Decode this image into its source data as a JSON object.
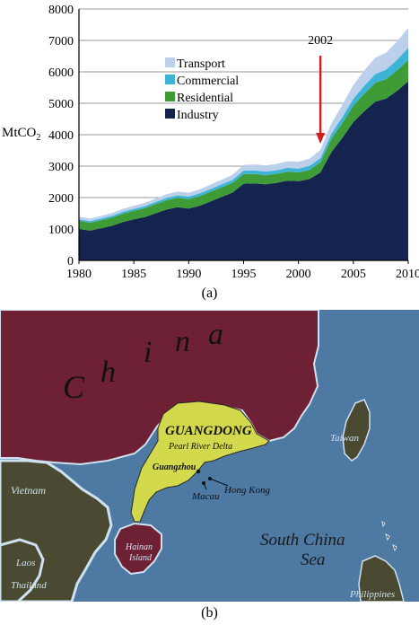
{
  "chart_data": {
    "type": "area",
    "stacked": true,
    "ylabel": "MtCO",
    "ylabel_sub": "2",
    "ylim": [
      0,
      8000
    ],
    "yticks": [
      0,
      1000,
      2000,
      3000,
      4000,
      5000,
      6000,
      7000,
      8000
    ],
    "xlim": [
      1980,
      2010
    ],
    "xticks": [
      1980,
      1985,
      1990,
      1995,
      2000,
      2005,
      2010
    ],
    "grid": true,
    "legend_position": "upper-left",
    "x": [
      1980,
      1981,
      1982,
      1983,
      1984,
      1985,
      1986,
      1987,
      1988,
      1989,
      1990,
      1991,
      1992,
      1993,
      1994,
      1995,
      1996,
      1997,
      1998,
      1999,
      2000,
      2001,
      2002,
      2003,
      2004,
      2005,
      2006,
      2007,
      2008,
      2009,
      2010
    ],
    "series": [
      {
        "name": "Industry",
        "color": "#14244f",
        "values": [
          1000,
          950,
          1020,
          1100,
          1220,
          1310,
          1380,
          1500,
          1620,
          1690,
          1650,
          1740,
          1880,
          2020,
          2160,
          2440,
          2450,
          2420,
          2470,
          2540,
          2520,
          2590,
          2800,
          3450,
          3900,
          4400,
          4750,
          5050,
          5150,
          5400,
          5700
        ]
      },
      {
        "name": "Residential",
        "color": "#3e9b35",
        "values": [
          260,
          250,
          255,
          260,
          265,
          270,
          280,
          290,
          300,
          300,
          300,
          305,
          305,
          305,
          305,
          310,
          300,
          290,
          285,
          285,
          280,
          290,
          320,
          420,
          470,
          520,
          560,
          600,
          620,
          650,
          680
        ]
      },
      {
        "name": "Commercial",
        "color": "#3db3d6",
        "values": [
          50,
          50,
          55,
          55,
          60,
          60,
          65,
          70,
          75,
          80,
          80,
          85,
          90,
          95,
          100,
          110,
          115,
          115,
          115,
          120,
          120,
          125,
          135,
          160,
          190,
          220,
          250,
          280,
          300,
          340,
          380
        ]
      },
      {
        "name": "Transport",
        "color": "#bcd0eb",
        "values": [
          80,
          80,
          85,
          90,
          95,
          100,
          105,
          110,
          115,
          120,
          125,
          130,
          140,
          150,
          160,
          180,
          190,
          195,
          200,
          210,
          220,
          230,
          260,
          330,
          390,
          440,
          490,
          520,
          540,
          590,
          640
        ]
      }
    ],
    "annotation": {
      "text": "2002",
      "x": 2002
    }
  },
  "captions": {
    "a": "(a)",
    "b": "(b)"
  },
  "map": {
    "colors": {
      "sea": "#4d79a3",
      "china": "#6e2134",
      "guangdong": "#d2d94c",
      "taiwan": "#4a4a33",
      "hainan": "#6e2134",
      "land": "#4a4a33"
    },
    "labels": {
      "china": [
        "C",
        "h",
        "i",
        "n",
        "a"
      ],
      "guangdong": "GUANGDONG",
      "prd": "Pearl River Delta",
      "guangzhou": "Guangzhou",
      "hongkong": "Hong Kong",
      "macau": "Macau",
      "taiwan": "Taiwan",
      "vietnam": "Vietnam",
      "hainan_1": "Hainan",
      "hainan_2": "Island",
      "scs_1": "South China",
      "scs_2": "Sea",
      "laos": "Laos",
      "thailand": "Thailand",
      "philippines": "Philippines"
    }
  }
}
